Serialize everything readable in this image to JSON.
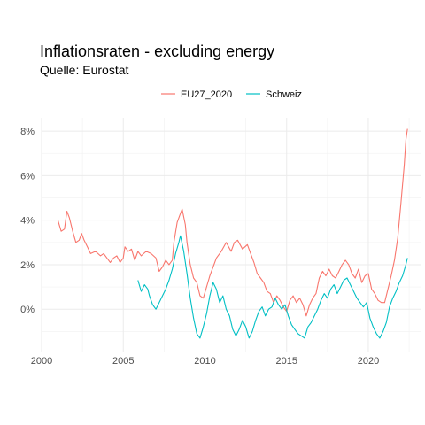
{
  "chart_data": {
    "type": "line",
    "title": "Inflationsraten - excluding energy",
    "subtitle": "Quelle: Eurostat",
    "xlabel": "",
    "ylabel": "",
    "xlim": [
      2000,
      2023.2
    ],
    "ylim": [
      -1.9,
      8.6
    ],
    "x_ticks": [
      2000,
      2005,
      2010,
      2015,
      2020
    ],
    "y_ticks": [
      0,
      2,
      4,
      6,
      8
    ],
    "y_tick_labels": [
      "0%",
      "2%",
      "4%",
      "6%",
      "8%"
    ],
    "grid": true,
    "legend_position": "top",
    "series": [
      {
        "name": "EU27_2020",
        "color": "#F8766D",
        "points": [
          [
            2001.0,
            4.0
          ],
          [
            2001.2,
            3.5
          ],
          [
            2001.4,
            3.6
          ],
          [
            2001.55,
            4.4
          ],
          [
            2001.7,
            4.1
          ],
          [
            2001.9,
            3.5
          ],
          [
            2002.1,
            3.0
          ],
          [
            2002.3,
            3.1
          ],
          [
            2002.45,
            3.4
          ],
          [
            2002.6,
            3.1
          ],
          [
            2002.8,
            2.8
          ],
          [
            2003.0,
            2.5
          ],
          [
            2003.3,
            2.6
          ],
          [
            2003.6,
            2.4
          ],
          [
            2003.8,
            2.5
          ],
          [
            2004.0,
            2.3
          ],
          [
            2004.2,
            2.1
          ],
          [
            2004.4,
            2.3
          ],
          [
            2004.6,
            2.4
          ],
          [
            2004.8,
            2.1
          ],
          [
            2005.0,
            2.3
          ],
          [
            2005.1,
            2.8
          ],
          [
            2005.3,
            2.6
          ],
          [
            2005.5,
            2.7
          ],
          [
            2005.7,
            2.2
          ],
          [
            2005.9,
            2.6
          ],
          [
            2006.1,
            2.4
          ],
          [
            2006.4,
            2.6
          ],
          [
            2006.7,
            2.5
          ],
          [
            2007.0,
            2.3
          ],
          [
            2007.2,
            1.7
          ],
          [
            2007.4,
            1.9
          ],
          [
            2007.6,
            2.2
          ],
          [
            2007.8,
            2.0
          ],
          [
            2008.0,
            2.2
          ],
          [
            2008.1,
            3.0
          ],
          [
            2008.3,
            3.9
          ],
          [
            2008.5,
            4.3
          ],
          [
            2008.6,
            4.5
          ],
          [
            2008.8,
            3.8
          ],
          [
            2008.9,
            3.0
          ],
          [
            2009.1,
            2.0
          ],
          [
            2009.3,
            1.4
          ],
          [
            2009.5,
            1.2
          ],
          [
            2009.7,
            0.6
          ],
          [
            2009.9,
            0.5
          ],
          [
            2010.1,
            1.0
          ],
          [
            2010.3,
            1.5
          ],
          [
            2010.5,
            1.9
          ],
          [
            2010.7,
            2.3
          ],
          [
            2011.0,
            2.6
          ],
          [
            2011.3,
            3.0
          ],
          [
            2011.6,
            2.6
          ],
          [
            2011.8,
            3.0
          ],
          [
            2012.0,
            3.1
          ],
          [
            2012.3,
            2.7
          ],
          [
            2012.6,
            2.9
          ],
          [
            2012.8,
            2.5
          ],
          [
            2013.0,
            2.1
          ],
          [
            2013.2,
            1.6
          ],
          [
            2013.4,
            1.4
          ],
          [
            2013.6,
            1.2
          ],
          [
            2013.8,
            0.8
          ],
          [
            2014.0,
            0.7
          ],
          [
            2014.2,
            0.3
          ],
          [
            2014.4,
            0.6
          ],
          [
            2014.6,
            0.4
          ],
          [
            2014.8,
            0.1
          ],
          [
            2015.0,
            -0.1
          ],
          [
            2015.2,
            0.4
          ],
          [
            2015.4,
            0.6
          ],
          [
            2015.6,
            0.3
          ],
          [
            2015.8,
            0.5
          ],
          [
            2016.0,
            0.2
          ],
          [
            2016.2,
            -0.3
          ],
          [
            2016.4,
            0.2
          ],
          [
            2016.6,
            0.5
          ],
          [
            2016.8,
            0.7
          ],
          [
            2017.0,
            1.4
          ],
          [
            2017.2,
            1.7
          ],
          [
            2017.4,
            1.5
          ],
          [
            2017.6,
            1.8
          ],
          [
            2017.8,
            1.5
          ],
          [
            2018.0,
            1.4
          ],
          [
            2018.2,
            1.7
          ],
          [
            2018.4,
            2.0
          ],
          [
            2018.6,
            2.2
          ],
          [
            2018.8,
            2.0
          ],
          [
            2019.0,
            1.6
          ],
          [
            2019.2,
            1.4
          ],
          [
            2019.4,
            1.8
          ],
          [
            2019.6,
            1.2
          ],
          [
            2019.8,
            1.5
          ],
          [
            2020.0,
            1.6
          ],
          [
            2020.2,
            0.9
          ],
          [
            2020.4,
            0.7
          ],
          [
            2020.6,
            0.4
          ],
          [
            2020.8,
            0.3
          ],
          [
            2021.0,
            0.3
          ],
          [
            2021.2,
            0.9
          ],
          [
            2021.4,
            1.5
          ],
          [
            2021.6,
            2.2
          ],
          [
            2021.8,
            3.2
          ],
          [
            2022.0,
            4.8
          ],
          [
            2022.2,
            6.5
          ],
          [
            2022.3,
            7.6
          ],
          [
            2022.4,
            8.1
          ]
        ]
      },
      {
        "name": "Schweiz",
        "color": "#00BFC4",
        "points": [
          [
            2005.9,
            1.3
          ],
          [
            2006.1,
            0.8
          ],
          [
            2006.3,
            1.1
          ],
          [
            2006.5,
            0.9
          ],
          [
            2006.6,
            0.6
          ],
          [
            2006.8,
            0.2
          ],
          [
            2007.0,
            0.0
          ],
          [
            2007.2,
            0.3
          ],
          [
            2007.4,
            0.6
          ],
          [
            2007.6,
            0.9
          ],
          [
            2007.8,
            1.3
          ],
          [
            2008.0,
            1.8
          ],
          [
            2008.2,
            2.5
          ],
          [
            2008.4,
            3.0
          ],
          [
            2008.5,
            3.3
          ],
          [
            2008.7,
            2.6
          ],
          [
            2008.9,
            1.6
          ],
          [
            2009.1,
            0.5
          ],
          [
            2009.3,
            -0.4
          ],
          [
            2009.5,
            -1.1
          ],
          [
            2009.7,
            -1.3
          ],
          [
            2009.9,
            -0.8
          ],
          [
            2010.1,
            -0.2
          ],
          [
            2010.3,
            0.6
          ],
          [
            2010.5,
            1.2
          ],
          [
            2010.7,
            0.9
          ],
          [
            2010.9,
            0.3
          ],
          [
            2011.1,
            0.6
          ],
          [
            2011.3,
            0.0
          ],
          [
            2011.5,
            -0.3
          ],
          [
            2011.7,
            -0.9
          ],
          [
            2011.9,
            -1.2
          ],
          [
            2012.1,
            -0.9
          ],
          [
            2012.3,
            -0.5
          ],
          [
            2012.5,
            -0.8
          ],
          [
            2012.7,
            -1.3
          ],
          [
            2012.9,
            -1.0
          ],
          [
            2013.1,
            -0.5
          ],
          [
            2013.3,
            -0.1
          ],
          [
            2013.5,
            0.1
          ],
          [
            2013.7,
            -0.3
          ],
          [
            2013.9,
            0.0
          ],
          [
            2014.1,
            0.1
          ],
          [
            2014.3,
            0.5
          ],
          [
            2014.5,
            0.2
          ],
          [
            2014.7,
            0.0
          ],
          [
            2014.9,
            0.2
          ],
          [
            2015.1,
            -0.3
          ],
          [
            2015.3,
            -0.7
          ],
          [
            2015.5,
            -0.9
          ],
          [
            2015.7,
            -1.1
          ],
          [
            2015.9,
            -1.2
          ],
          [
            2016.1,
            -1.3
          ],
          [
            2016.3,
            -0.8
          ],
          [
            2016.5,
            -0.6
          ],
          [
            2016.7,
            -0.3
          ],
          [
            2016.9,
            0.0
          ],
          [
            2017.1,
            0.4
          ],
          [
            2017.3,
            0.7
          ],
          [
            2017.5,
            0.5
          ],
          [
            2017.7,
            0.9
          ],
          [
            2017.9,
            1.1
          ],
          [
            2018.1,
            0.7
          ],
          [
            2018.3,
            1.0
          ],
          [
            2018.5,
            1.3
          ],
          [
            2018.7,
            1.4
          ],
          [
            2018.9,
            1.1
          ],
          [
            2019.1,
            0.8
          ],
          [
            2019.3,
            0.5
          ],
          [
            2019.5,
            0.3
          ],
          [
            2019.7,
            0.1
          ],
          [
            2019.9,
            0.3
          ],
          [
            2020.1,
            -0.4
          ],
          [
            2020.3,
            -0.8
          ],
          [
            2020.5,
            -1.1
          ],
          [
            2020.7,
            -1.3
          ],
          [
            2020.9,
            -1.0
          ],
          [
            2021.1,
            -0.6
          ],
          [
            2021.3,
            0.1
          ],
          [
            2021.5,
            0.5
          ],
          [
            2021.7,
            0.8
          ],
          [
            2021.9,
            1.2
          ],
          [
            2022.1,
            1.5
          ],
          [
            2022.3,
            2.0
          ],
          [
            2022.4,
            2.3
          ]
        ]
      }
    ]
  }
}
